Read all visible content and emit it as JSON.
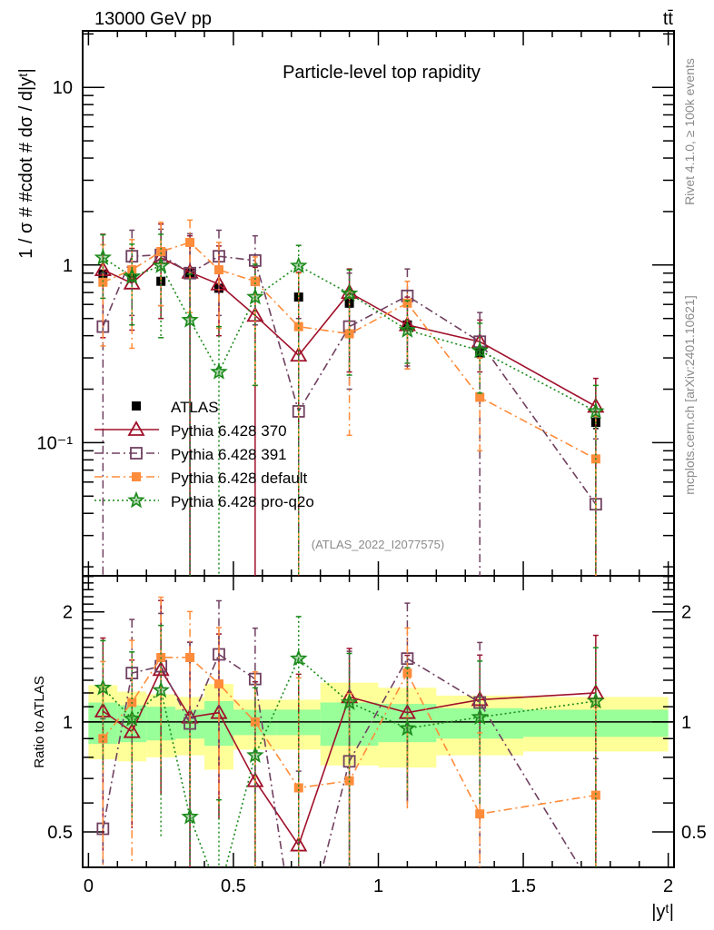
{
  "chart_data": {
    "type": "scatter",
    "header_left": "13000 GeV pp",
    "header_right": "tt̄",
    "title": "Particle-level top rapidity",
    "ylabel": "1 / σ # #cdot # dσ / d|yᵗ|",
    "xlabel": "|yᵗ|",
    "ratio_ylabel": "Ratio to ATLAS",
    "side_label_top": "Rivet 4.1.0, ≥ 100k events",
    "side_label_bottom": "mcplots.cern.ch [arXiv:2401.10621]",
    "analysis_label": "(ATLAS_2022_I2077575)",
    "xlim": [
      -0.02,
      2.02
    ],
    "ylim": [
      0.0178,
      20.8
    ],
    "yscale": "log",
    "ratio_ylim": [
      0.4,
      2.51
    ],
    "ratio_yscale": "log",
    "x_ticks": [
      {
        "v": 0,
        "label": "0"
      },
      {
        "v": 0.5,
        "label": "0.5"
      },
      {
        "v": 1,
        "label": "1"
      },
      {
        "v": 1.5,
        "label": "1.5"
      },
      {
        "v": 2,
        "label": "2"
      }
    ],
    "y_ticks": [
      {
        "v": 10,
        "label": "10"
      },
      {
        "v": 1,
        "label": "1"
      },
      {
        "v": 0.1,
        "label": "10⁻¹"
      }
    ],
    "ratio_ticks": [
      {
        "v": 2,
        "label": "2"
      },
      {
        "v": 1,
        "label": "1"
      },
      {
        "v": 0.5,
        "label": "0.5"
      }
    ],
    "bin_edges": [
      0,
      0.1,
      0.2,
      0.3,
      0.4,
      0.5,
      0.65,
      0.8,
      1.0,
      1.2,
      1.5,
      2.0
    ],
    "x": [
      0.05,
      0.15,
      0.25,
      0.35,
      0.45,
      0.575,
      0.725,
      0.9,
      1.1,
      1.35,
      1.75
    ],
    "ratio_band_inner": {
      "color": "#99ff99",
      "up": [
        1.13,
        1.11,
        1.1,
        1.08,
        1.14,
        1.08,
        1.08,
        1.13,
        1.12,
        1.09,
        1.08
      ],
      "down": [
        0.87,
        0.88,
        0.89,
        0.9,
        0.86,
        0.92,
        0.92,
        0.86,
        0.88,
        0.9,
        0.91
      ]
    },
    "ratio_band_outer": {
      "color": "#ffff99",
      "up": [
        1.26,
        1.21,
        1.19,
        1.17,
        1.27,
        1.15,
        1.15,
        1.28,
        1.24,
        1.18,
        1.17
      ],
      "down": [
        0.79,
        0.78,
        0.8,
        0.81,
        0.74,
        0.84,
        0.84,
        0.76,
        0.75,
        0.81,
        0.83
      ]
    },
    "legend_position": "lower-left",
    "series": [
      {
        "name": "ATLAS",
        "color": "#000000",
        "marker": "filled-square",
        "line": "none",
        "values": [
          0.89,
          0.85,
          0.81,
          0.9,
          0.74,
          0.81,
          0.66,
          0.61,
          0.46,
          0.32,
          0.13
        ],
        "err": [
          0.03,
          0.03,
          0.03,
          0.03,
          0.03,
          0.03,
          0.03,
          0.03,
          0.02,
          0.02,
          0.01
        ]
      },
      {
        "name": "Pythia 6.428 370",
        "color": "#a0102a",
        "marker": "open-triangle",
        "line": "solid",
        "values": [
          0.94,
          0.79,
          1.1,
          0.91,
          0.78,
          0.52,
          0.31,
          0.7,
          0.46,
          0.37,
          0.16
        ],
        "err_up": [
          0.55,
          0.45,
          0.6,
          0.55,
          0.5,
          0.45,
          0.6,
          0.25,
          0.2,
          0.12,
          0.07
        ],
        "err_down": [
          0.55,
          0.36,
          0.6,
          0.91,
          0.38,
          0.52,
          0.31,
          0.45,
          0.2,
          0.12,
          0.16
        ],
        "ratio": [
          1.07,
          0.94,
          1.39,
          1.03,
          1.06,
          0.69,
          0.46,
          1.17,
          1.06,
          1.15,
          1.2
        ]
      },
      {
        "name": "Pythia 6.428 391",
        "color": "#704060",
        "marker": "open-square",
        "line": "dashdot",
        "values": [
          0.45,
          1.12,
          1.14,
          0.9,
          1.12,
          1.06,
          0.15,
          0.45,
          0.67,
          0.37,
          0.045
        ],
        "err_up": [
          0.45,
          0.45,
          0.45,
          0.6,
          0.45,
          0.4,
          0.35,
          0.45,
          0.28,
          0.17,
          0.06
        ],
        "err_down": [
          0.45,
          0.6,
          0.55,
          0.9,
          0.6,
          0.6,
          0.15,
          0.25,
          0.4,
          0.37,
          0.045
        ],
        "ratio": [
          0.51,
          1.36,
          1.42,
          0.99,
          1.53,
          1.31,
          0.22,
          0.78,
          1.49,
          1.13,
          0.34
        ]
      },
      {
        "name": "Pythia 6.428 default",
        "color": "#ff8c3a",
        "marker": "filled-square",
        "line": "dashdot",
        "values": [
          0.8,
          0.94,
          1.19,
          1.34,
          0.94,
          0.81,
          0.45,
          0.41,
          0.61,
          0.18,
          0.081
        ],
        "err_up": [
          0.5,
          0.45,
          0.55,
          0.45,
          0.4,
          0.3,
          0.45,
          0.3,
          0.2,
          0.12,
          0.06
        ],
        "err_down": [
          0.45,
          0.6,
          0.6,
          0.8,
          0.5,
          0.6,
          0.45,
          0.3,
          0.35,
          0.09,
          0.081
        ],
        "ratio": [
          0.9,
          1.13,
          1.5,
          1.5,
          1.27,
          1.0,
          0.66,
          0.69,
          1.36,
          0.56,
          0.63
        ]
      },
      {
        "name": "Pythia 6.428 pro-q2o",
        "color": "#1a8a1a",
        "marker": "open-star",
        "line": "dotted",
        "values": [
          1.1,
          0.86,
          0.99,
          0.49,
          0.25,
          0.66,
          0.99,
          0.69,
          0.43,
          0.33,
          0.15
        ],
        "err_up": [
          0.38,
          0.45,
          0.5,
          0.4,
          0.2,
          0.35,
          0.3,
          0.25,
          0.2,
          0.14,
          0.06
        ],
        "err_down": [
          0.45,
          0.4,
          0.6,
          0.49,
          0.25,
          0.45,
          0.99,
          0.45,
          0.15,
          0.14,
          0.15
        ],
        "ratio": [
          1.24,
          1.02,
          1.22,
          0.55,
          0.34,
          0.81,
          1.49,
          1.13,
          0.96,
          1.03,
          1.14
        ]
      }
    ]
  }
}
